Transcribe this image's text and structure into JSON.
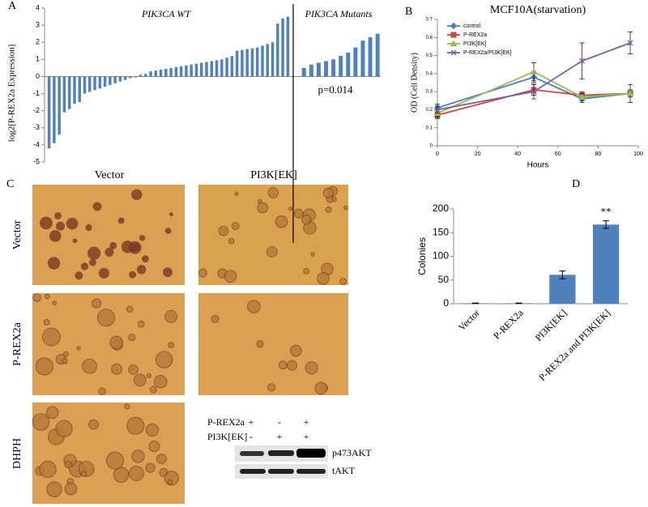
{
  "figure": {
    "panel_labels": [
      "A",
      "B",
      "C",
      "D"
    ],
    "panel_c": {
      "column_headers": [
        "Vector",
        "PI3K[EK]"
      ],
      "row_headers": [
        "Vector",
        "P-REX2a",
        "DHPH"
      ],
      "blot": {
        "rows": [
          {
            "label": "P-REX2a",
            "marks": [
              "+",
              "-",
              "+"
            ]
          },
          {
            "label": "PI3K[EK]",
            "marks": [
              "-",
              "+",
              "+"
            ]
          }
        ],
        "bands": [
          "p473AKT",
          "tAKT"
        ]
      }
    }
  },
  "chart_data": [
    {
      "type": "bar",
      "y_label": "log2[P-REX2a Expression]",
      "groups": [
        {
          "name": "PIK3CA WT",
          "values": [
            -4.2,
            -3.9,
            -3.4,
            -2.1,
            -1.9,
            -1.6,
            -1.5,
            -1.0,
            -0.9,
            -0.8,
            -0.7,
            -0.6,
            -0.5,
            -0.4,
            -0.3,
            -0.2,
            -0.1,
            -0.05,
            0.1,
            0.15,
            0.3,
            0.35,
            0.4,
            0.45,
            0.5,
            0.55,
            0.6,
            0.65,
            0.7,
            0.75,
            0.8,
            0.85,
            0.9,
            0.95,
            1.0,
            1.1,
            1.2,
            1.5,
            1.55,
            1.6,
            1.65,
            1.7,
            1.8,
            1.9,
            2.0,
            3.1,
            3.4,
            3.5
          ]
        },
        {
          "name": "PIK3CA Mutants",
          "values": [
            0.5,
            0.7,
            0.8,
            0.9,
            1.0,
            1.2,
            1.4,
            1.7,
            2.1,
            2.3,
            2.5
          ]
        }
      ],
      "color": "#4f81bd",
      "annotation": "p=0.014",
      "ylim": [
        -5,
        4
      ],
      "yticks": [
        -5,
        -4,
        -3,
        -2,
        -1,
        0,
        1,
        2,
        3,
        4
      ]
    },
    {
      "type": "line",
      "title": "MCF10A(starvation)",
      "x_label": "Hours",
      "y_label": "OD (Cell Density)",
      "x": [
        0,
        48,
        72,
        96
      ],
      "series": [
        {
          "name": "control",
          "color": "#4a7ebb",
          "marker": "diamond",
          "values": [
            0.21,
            0.38,
            0.26,
            0.29
          ],
          "errors": [
            0.02,
            0.03,
            0.02,
            0.02
          ]
        },
        {
          "name": "P-REX2a",
          "color": "#be4b48",
          "marker": "square",
          "values": [
            0.17,
            0.31,
            0.28,
            0.29
          ],
          "errors": [
            0.02,
            0.03,
            0.02,
            0.05
          ]
        },
        {
          "name": "PI3K[EK]",
          "color": "#98b954",
          "marker": "triangle",
          "values": [
            0.18,
            0.41,
            0.27,
            0.29
          ],
          "errors": [
            0.02,
            0.05,
            0.02,
            0.02
          ]
        },
        {
          "name": "P-REX2a/PI3K[EK]",
          "color": "#7d60a0",
          "marker": "x",
          "values": [
            0.2,
            0.3,
            0.47,
            0.57
          ],
          "errors": [
            0.02,
            0.04,
            0.1,
            0.06
          ]
        }
      ],
      "xlim": [
        0,
        100
      ],
      "xticks": [
        0,
        20,
        40,
        60,
        80,
        100
      ],
      "ylim": [
        0,
        0.7
      ],
      "yticks": [
        0,
        0.1,
        0.2,
        0.3,
        0.4,
        0.5,
        0.6,
        0.7
      ],
      "legend": "upper-left"
    },
    {
      "type": "bar",
      "y_label": "Colonies",
      "categories": [
        "Vector",
        "P-REX2a",
        "PI3K[EK]",
        "P-REX2a and PI3K[EK]"
      ],
      "values": [
        1,
        1,
        61,
        167
      ],
      "errors": [
        0.5,
        0.5,
        8,
        8
      ],
      "color": "#4f81bd",
      "annotations": [
        null,
        null,
        null,
        "**"
      ],
      "ylim": [
        0,
        200
      ],
      "yticks": [
        0,
        50,
        100,
        150,
        200
      ]
    }
  ]
}
